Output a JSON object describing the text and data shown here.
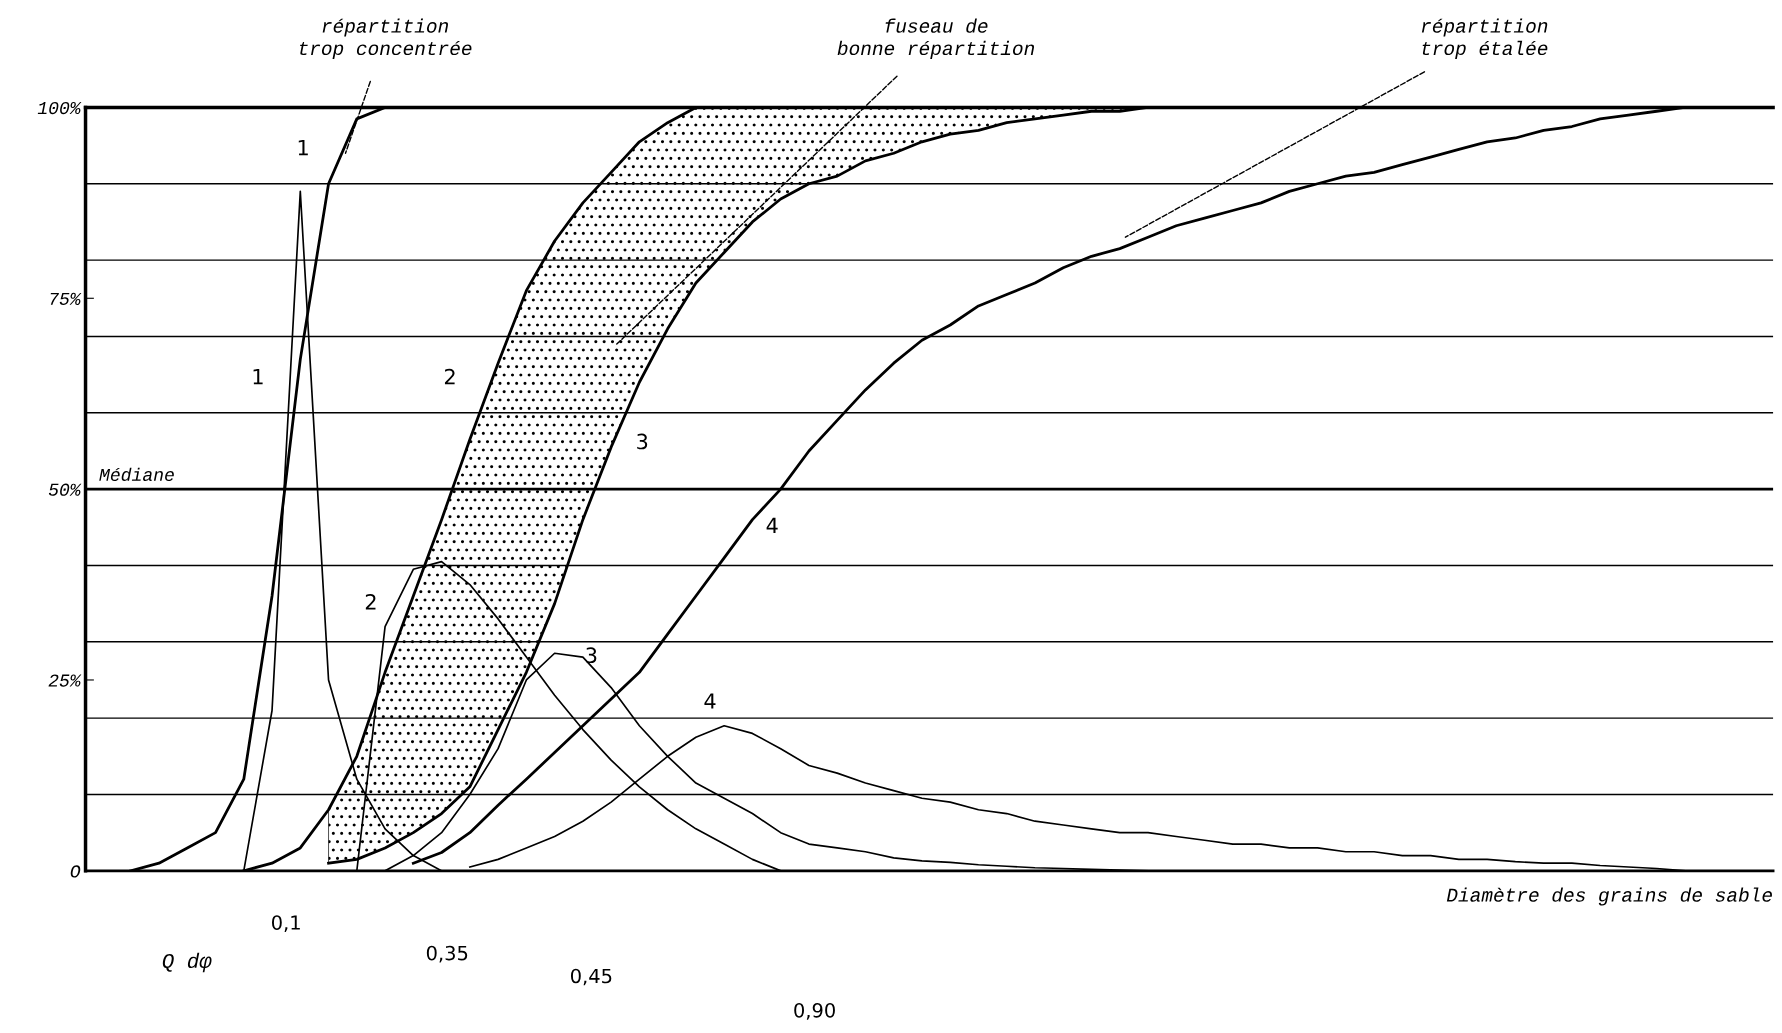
{
  "chart_data": {
    "type": "line",
    "xlabel": "Diamètre des grains de sable",
    "categories": [
      null,
      null,
      null,
      null,
      null,
      null,
      null,
      null,
      null,
      null,
      null,
      null,
      null,
      null,
      null,
      null,
      null,
      null,
      null,
      null,
      null,
      null,
      null,
      null,
      null,
      null,
      null,
      null,
      null,
      null,
      null,
      null,
      null,
      null,
      null,
      null,
      null,
      null,
      null,
      null,
      null,
      null,
      null,
      null,
      null,
      null,
      null,
      null,
      null,
      null,
      null,
      null,
      null,
      null,
      null,
      null,
      null,
      null,
      null,
      null
    ],
    "ylim": [
      0,
      100
    ],
    "yticks": [
      {
        "value": 0,
        "label": "O"
      },
      {
        "value": 25,
        "label": "25%"
      },
      {
        "value": 50,
        "label": "50%"
      },
      {
        "value": 75,
        "label": "75%"
      },
      {
        "value": 100,
        "label": "100%"
      }
    ],
    "tick_labels": "y",
    "grid": false,
    "legend": false,
    "marker": "none",
    "line_style": "solid",
    "series": [
      {
        "color": "#000000",
        "values": [
          null,
          0,
          1,
          3,
          5,
          12,
          36,
          67,
          90,
          98.5,
          100,
          100,
          100,
          null,
          null,
          null,
          null,
          null,
          null,
          null,
          null,
          null,
          null,
          null,
          null,
          null,
          null,
          null,
          null,
          null,
          null,
          null,
          null,
          null,
          null,
          null,
          null,
          null,
          null,
          null,
          null,
          null,
          null,
          null,
          null,
          null,
          null,
          null,
          null,
          null,
          null,
          null,
          null,
          null,
          null,
          null,
          null,
          null,
          null,
          null
        ]
      },
      {
        "color": "#000000",
        "values": [
          null,
          null,
          null,
          null,
          null,
          0,
          21,
          89,
          25,
          12,
          5.5,
          2,
          0,
          null,
          null,
          null,
          null,
          null,
          null,
          null,
          null,
          null,
          null,
          null,
          null,
          null,
          null,
          null,
          null,
          null,
          null,
          null,
          null,
          null,
          null,
          null,
          null,
          null,
          null,
          null,
          null,
          null,
          null,
          null,
          null,
          null,
          null,
          null,
          null,
          null,
          null,
          null,
          null,
          null,
          null,
          null,
          null,
          null,
          null,
          null
        ]
      },
      {
        "color": "#000000",
        "values": [
          null,
          null,
          null,
          null,
          null,
          0,
          1,
          3,
          8,
          15,
          26,
          36,
          46,
          56.5,
          66.5,
          76,
          82.5,
          87.5,
          91.5,
          95.5,
          98,
          100,
          100,
          100,
          100,
          100,
          100,
          100,
          100,
          100,
          100,
          100,
          100,
          100,
          100,
          100,
          100,
          100,
          null,
          null,
          null,
          null,
          null,
          null,
          null,
          null,
          null,
          null,
          null,
          null,
          null,
          null,
          null,
          null,
          null,
          null,
          null,
          null,
          null,
          null
        ],
        "upper": [
          null,
          null,
          null,
          null,
          null,
          null,
          null,
          null,
          8,
          15,
          26,
          36,
          46,
          56.5,
          66.5,
          76,
          82.5,
          87.5,
          91.5,
          95.5,
          98,
          100,
          100,
          100,
          100,
          100,
          100,
          100,
          100,
          100,
          100,
          100,
          100,
          100,
          100,
          100,
          100,
          100,
          null,
          null,
          null,
          null,
          null,
          null,
          null,
          null,
          null,
          null,
          null,
          null,
          null,
          null,
          null,
          null,
          null,
          null,
          null,
          null,
          null,
          null
        ],
        "lower": [
          null,
          null,
          null,
          null,
          null,
          null,
          null,
          null,
          1,
          1.5,
          3,
          5,
          7.5,
          11,
          18.5,
          26,
          35,
          46,
          55.5,
          64,
          71,
          77,
          81,
          85,
          88,
          90,
          91,
          93,
          94,
          95.5,
          96.5,
          97,
          98,
          98.5,
          99,
          99.5,
          99.5,
          100,
          null,
          null,
          null,
          null,
          null,
          null,
          null,
          null,
          null,
          null,
          null,
          null,
          null,
          null,
          null,
          null,
          null,
          null,
          null,
          null,
          null,
          null
        ]
      },
      {
        "color": "#000000",
        "values": [
          null,
          null,
          null,
          null,
          null,
          null,
          null,
          null,
          null,
          0,
          32,
          39.5,
          40.5,
          37.5,
          33,
          28,
          23,
          18.5,
          14.5,
          11,
          8,
          5.5,
          3.5,
          1.5,
          0,
          null,
          null,
          null,
          null,
          null,
          null,
          null,
          null,
          null,
          null,
          null,
          null,
          null,
          null,
          null,
          null,
          null,
          null,
          null,
          null,
          null,
          null,
          null,
          null,
          null,
          null,
          null,
          null,
          null,
          null,
          null,
          null,
          null,
          null,
          null
        ]
      },
      {
        "color": "#000000",
        "values": [
          null,
          null,
          null,
          null,
          null,
          null,
          null,
          null,
          1,
          1.5,
          3,
          5,
          7.5,
          11,
          18.5,
          26,
          35,
          46,
          55.5,
          64,
          71,
          77,
          81,
          85,
          88,
          90,
          91,
          93,
          94,
          95.5,
          96.5,
          97,
          98,
          98.5,
          99,
          99.5,
          99.5,
          100,
          null,
          null,
          null,
          null,
          null,
          null,
          null,
          null,
          null,
          null,
          null,
          null,
          null,
          null,
          null,
          null,
          null,
          null,
          null,
          null,
          null,
          null
        ]
      },
      {
        "color": "#000000",
        "values": [
          null,
          null,
          null,
          null,
          null,
          null,
          null,
          null,
          null,
          null,
          0,
          2,
          5,
          10,
          16,
          25,
          28.5,
          28,
          24,
          19,
          15,
          11.5,
          9.5,
          7.5,
          5,
          3.5,
          3,
          2.5,
          1.7,
          1.3,
          1.1,
          0.8,
          0.6,
          0.4,
          0.3,
          0.2,
          0.1,
          0,
          null,
          null,
          null,
          null,
          null,
          null,
          null,
          null,
          null,
          null,
          null,
          null,
          null,
          null,
          null,
          null,
          null,
          null,
          null,
          null,
          null,
          null
        ]
      },
      {
        "color": "#000000",
        "values": [
          null,
          null,
          null,
          null,
          null,
          null,
          null,
          null,
          null,
          null,
          null,
          1,
          2.4,
          5,
          8.6,
          12,
          15.5,
          19,
          22.5,
          26,
          31,
          36,
          41,
          46,
          50,
          55,
          59,
          63,
          66.5,
          69.5,
          71.5,
          74,
          75.5,
          77,
          79,
          80.5,
          81.5,
          83,
          84.5,
          85.5,
          86.5,
          87.5,
          89,
          90,
          91,
          91.5,
          92.5,
          93.5,
          94.5,
          95.5,
          96,
          97,
          97.5,
          98.5,
          99,
          99.5,
          100,
          null,
          null,
          null
        ]
      },
      {
        "color": "#000000",
        "values": [
          null,
          null,
          null,
          null,
          null,
          null,
          null,
          null,
          null,
          null,
          null,
          null,
          null,
          0.5,
          1.5,
          3,
          4.5,
          6.5,
          9,
          12,
          15,
          17.5,
          19,
          18,
          16,
          13.8,
          12.8,
          11.5,
          10.5,
          9.5,
          9,
          8,
          7.5,
          6.5,
          6,
          5.5,
          5,
          5,
          4.5,
          4,
          3.5,
          3.5,
          3,
          3,
          2.5,
          2.5,
          2,
          2,
          1.5,
          1.5,
          1.2,
          1,
          1,
          0.7,
          0.5,
          0.3,
          0,
          null,
          null,
          null
        ]
      }
    ],
    "ref_lines": [
      {
        "axis": "y",
        "value": 10
      },
      {
        "axis": "y",
        "value": 20
      },
      {
        "axis": "y",
        "value": 30
      },
      {
        "axis": "y",
        "value": 40
      },
      {
        "axis": "y",
        "value": 50,
        "label": "Médiane"
      },
      {
        "axis": "y",
        "value": 60
      },
      {
        "axis": "y",
        "value": 70
      },
      {
        "axis": "y",
        "value": 80
      },
      {
        "axis": "y",
        "value": 90
      }
    ],
    "annotations": [
      "répartition\ntrop concentrée",
      "fuseau de\nbonne répartition",
      "répartition\ntrop étalée",
      "1",
      "1",
      "2",
      "2",
      "3",
      "3",
      "4",
      "4",
      "0,1",
      "0,35",
      "0,45",
      "0,90",
      "Q dφ"
    ]
  }
}
